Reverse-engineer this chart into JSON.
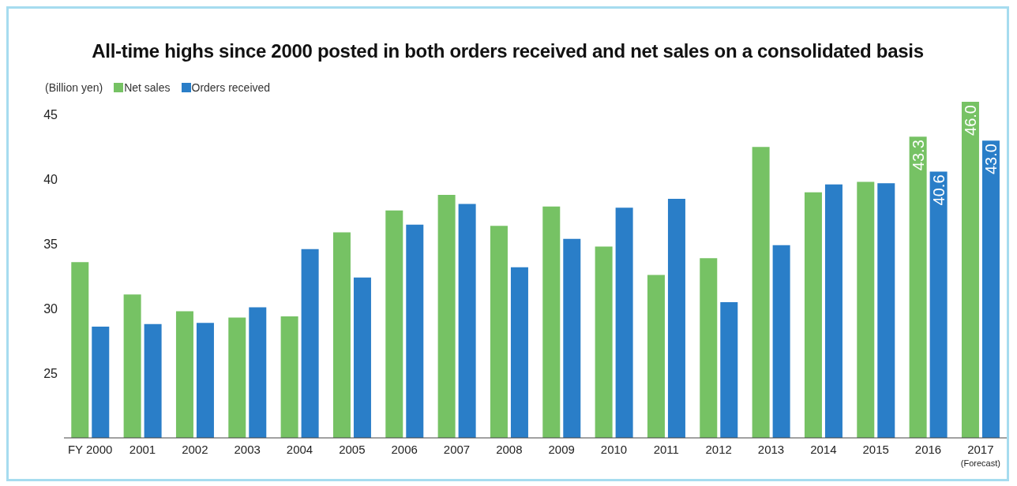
{
  "chart_data": {
    "type": "bar",
    "title": "All-time highs since 2000 posted in both orders received and net sales on a consolidated basis",
    "ylabel": "(Billion yen)",
    "categories": [
      "FY 2000",
      "2001",
      "2002",
      "2003",
      "2004",
      "2005",
      "2006",
      "2007",
      "2008",
      "2009",
      "2010",
      "2011",
      "2012",
      "2013",
      "2014",
      "2015",
      "2016",
      "2017\n(Forecast)"
    ],
    "series": [
      {
        "name": "Net sales",
        "color": "#76c264",
        "values": [
          33.6,
          31.1,
          29.8,
          29.3,
          29.4,
          35.9,
          37.6,
          38.8,
          36.4,
          37.9,
          34.8,
          32.6,
          33.9,
          42.5,
          39.0,
          39.8,
          43.3,
          46.0
        ],
        "value_labels": [
          null,
          null,
          null,
          null,
          null,
          null,
          null,
          null,
          null,
          null,
          null,
          null,
          null,
          null,
          null,
          null,
          "43.3",
          "46.0"
        ]
      },
      {
        "name": "Orders received",
        "color": "#2a7ec8",
        "values": [
          28.6,
          28.8,
          28.9,
          30.1,
          34.6,
          32.4,
          36.5,
          38.1,
          33.2,
          35.4,
          37.8,
          38.5,
          30.5,
          34.9,
          39.6,
          39.7,
          40.6,
          43.0
        ],
        "value_labels": [
          null,
          null,
          null,
          null,
          null,
          null,
          null,
          null,
          null,
          null,
          null,
          null,
          null,
          null,
          null,
          null,
          "40.6",
          "43.0"
        ]
      }
    ],
    "ylim": [
      20,
      46
    ],
    "yticks": [
      25,
      30,
      35,
      40,
      45
    ],
    "grid": false,
    "legend": "top left"
  }
}
